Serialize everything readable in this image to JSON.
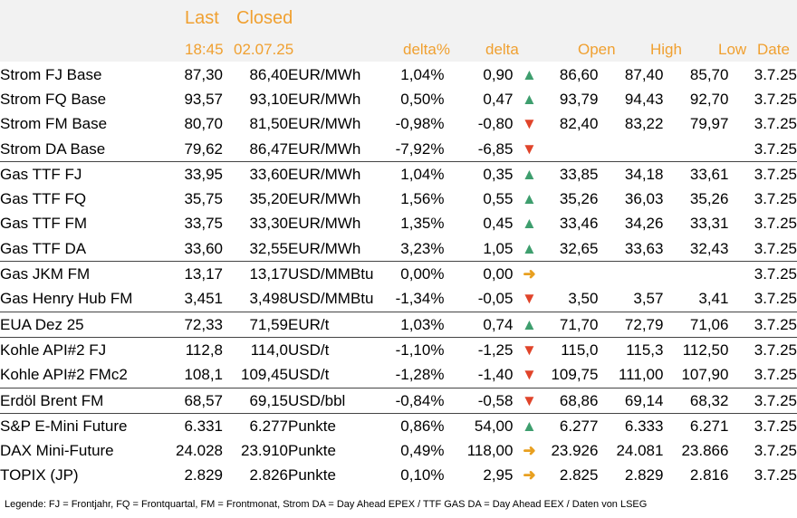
{
  "header": {
    "last": "Last",
    "closed": "Closed",
    "last_time": "18:45",
    "closed_date": "02.07.25",
    "delta_pct": "delta%",
    "delta": "delta",
    "open": "Open",
    "high": "High",
    "low": "Low",
    "date": "Date"
  },
  "colors": {
    "accent_orange": "#f0a030",
    "up_green": "#3e9e6e",
    "down_red": "#e0442a",
    "flat_orange": "#e8a020",
    "header_bg": "#f2f2f2"
  },
  "rows": [
    {
      "name": "Strom FJ Base",
      "last": "87,30",
      "closed": "86,40",
      "unit": "EUR/MWh",
      "dpct": "1,04%",
      "delta": "0,90",
      "trend": "up",
      "open": "86,60",
      "high": "87,40",
      "low": "85,70",
      "date": "3.7.25",
      "sep": false
    },
    {
      "name": "Strom FQ Base",
      "last": "93,57",
      "closed": "93,10",
      "unit": "EUR/MWh",
      "dpct": "0,50%",
      "delta": "0,47",
      "trend": "up",
      "open": "93,79",
      "high": "94,43",
      "low": "92,70",
      "date": "3.7.25",
      "sep": false
    },
    {
      "name": "Strom FM Base",
      "last": "80,70",
      "closed": "81,50",
      "unit": "EUR/MWh",
      "dpct": "-0,98%",
      "delta": "-0,80",
      "trend": "down",
      "open": "82,40",
      "high": "83,22",
      "low": "79,97",
      "date": "3.7.25",
      "sep": false
    },
    {
      "name": "Strom DA Base",
      "last": "79,62",
      "closed": "86,47",
      "unit": "EUR/MWh",
      "dpct": "-7,92%",
      "delta": "-6,85",
      "trend": "down",
      "open": "",
      "high": "",
      "low": "",
      "date": "3.7.25",
      "sep": false
    },
    {
      "name": "Gas TTF FJ",
      "last": "33,95",
      "closed": "33,60",
      "unit": "EUR/MWh",
      "dpct": "1,04%",
      "delta": "0,35",
      "trend": "up",
      "open": "33,85",
      "high": "34,18",
      "low": "33,61",
      "date": "3.7.25",
      "sep": true
    },
    {
      "name": "Gas TTF FQ",
      "last": "35,75",
      "closed": "35,20",
      "unit": "EUR/MWh",
      "dpct": "1,56%",
      "delta": "0,55",
      "trend": "up",
      "open": "35,26",
      "high": "36,03",
      "low": "35,26",
      "date": "3.7.25",
      "sep": false
    },
    {
      "name": "Gas TTF FM",
      "last": "33,75",
      "closed": "33,30",
      "unit": "EUR/MWh",
      "dpct": "1,35%",
      "delta": "0,45",
      "trend": "up",
      "open": "33,46",
      "high": "34,26",
      "low": "33,31",
      "date": "3.7.25",
      "sep": false
    },
    {
      "name": "Gas TTF DA",
      "last": "33,60",
      "closed": "32,55",
      "unit": "EUR/MWh",
      "dpct": "3,23%",
      "delta": "1,05",
      "trend": "up",
      "open": "32,65",
      "high": "33,63",
      "low": "32,43",
      "date": "3.7.25",
      "sep": false
    },
    {
      "name": "Gas JKM FM",
      "last": "13,17",
      "closed": "13,17",
      "unit": "USD/MMBtu",
      "dpct": "0,00%",
      "delta": "0,00",
      "trend": "flat",
      "open": "",
      "high": "",
      "low": "",
      "date": "3.7.25",
      "sep": true
    },
    {
      "name": "Gas Henry Hub FM",
      "last": "3,451",
      "closed": "3,498",
      "unit": "USD/MMBtu",
      "dpct": "-1,34%",
      "delta": "-0,05",
      "trend": "down",
      "open": "3,50",
      "high": "3,57",
      "low": "3,41",
      "date": "3.7.25",
      "sep": false
    },
    {
      "name": "EUA Dez 25",
      "last": "72,33",
      "closed": "71,59",
      "unit": "EUR/t",
      "dpct": "1,03%",
      "delta": "0,74",
      "trend": "up",
      "open": "71,70",
      "high": "72,79",
      "low": "71,06",
      "date": "3.7.25",
      "sep": true
    },
    {
      "name": "Kohle API#2 FJ",
      "last": "112,8",
      "closed": "114,0",
      "unit": "USD/t",
      "dpct": "-1,10%",
      "delta": "-1,25",
      "trend": "down",
      "open": "115,0",
      "high": "115,3",
      "low": "112,50",
      "date": "3.7.25",
      "sep": true
    },
    {
      "name": "Kohle API#2 FMc2",
      "last": "108,1",
      "closed": "109,45",
      "unit": "USD/t",
      "dpct": "-1,28%",
      "delta": "-1,40",
      "trend": "down",
      "open": "109,75",
      "high": "111,00",
      "low": "107,90",
      "date": "3.7.25",
      "sep": false
    },
    {
      "name": "Erdöl Brent FM",
      "last": "68,57",
      "closed": "69,15",
      "unit": "USD/bbl",
      "dpct": "-0,84%",
      "delta": "-0,58",
      "trend": "down",
      "open": "68,86",
      "high": "69,14",
      "low": "68,32",
      "date": "3.7.25",
      "sep": true
    },
    {
      "name": "S&P E-Mini Future",
      "last": "6.331",
      "closed": "6.277",
      "unit": "Punkte",
      "dpct": "0,86%",
      "delta": "54,00",
      "trend": "up",
      "open": "6.277",
      "high": "6.333",
      "low": "6.271",
      "date": "3.7.25",
      "sep": true
    },
    {
      "name": "DAX Mini-Future",
      "last": "24.028",
      "closed": "23.910",
      "unit": "Punkte",
      "dpct": "0,49%",
      "delta": "118,00",
      "trend": "flat",
      "open": "23.926",
      "high": "24.081",
      "low": "23.866",
      "date": "3.7.25",
      "sep": false
    },
    {
      "name": "TOPIX (JP)",
      "last": "2.829",
      "closed": "2.826",
      "unit": "Punkte",
      "dpct": "0,10%",
      "delta": "2,95",
      "trend": "flat",
      "open": "2.825",
      "high": "2.829",
      "low": "2.816",
      "date": "3.7.25",
      "sep": false
    }
  ],
  "legend": "Legende: FJ = Frontjahr, FQ = Frontquartal, FM = Frontmonat, Strom DA = Day Ahead EPEX / TTF GAS DA = Day Ahead EEX / Daten von LSEG"
}
